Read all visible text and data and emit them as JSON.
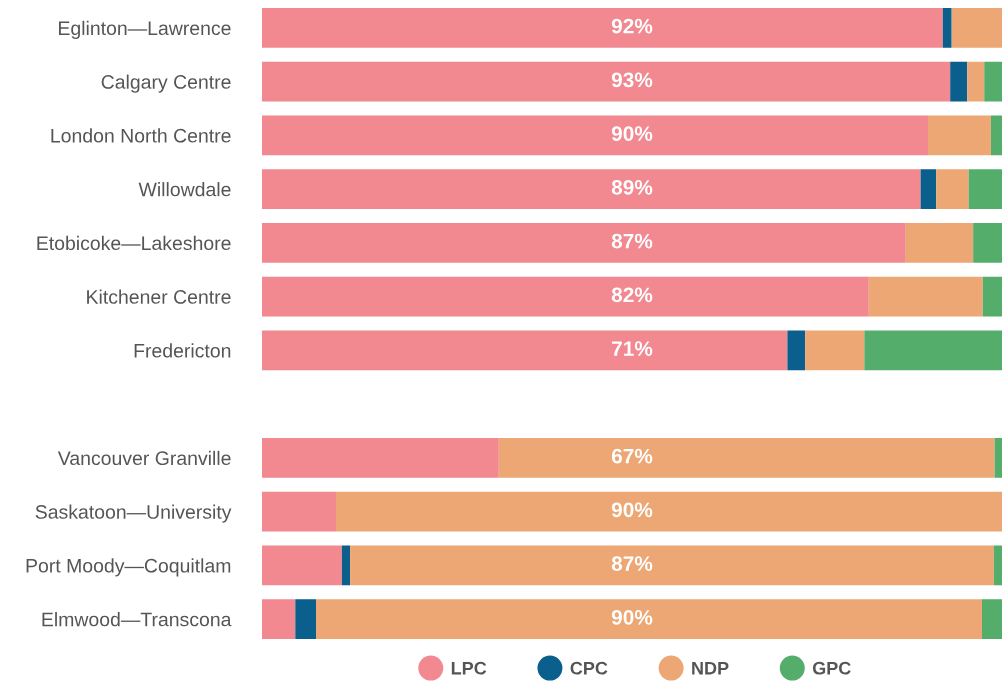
{
  "chart_data": {
    "type": "bar",
    "orientation": "horizontal",
    "stacked": true,
    "legend": "bottom",
    "marker": "circle",
    "xlim": [
      0,
      100
    ],
    "tick_labels": "y",
    "categories": [
      "Eglinton—Lawrence",
      "Calgary Centre",
      "London North Centre",
      "Willowdale",
      "Etobicoke—Lakeshore",
      "Kitchener Centre",
      "Fredericton",
      null,
      "Vancouver Granville",
      "Saskatoon—University",
      "Port Moody—Coquitlam",
      "Elmwood—Transcona"
    ],
    "series": [
      {
        "name": "LPC",
        "color": "#f28890",
        "values": [
          92,
          93,
          90,
          89,
          87,
          82,
          71,
          null,
          32,
          10,
          10.8,
          4.5
        ],
        "value_labels": [
          "92%",
          "93%",
          "90%",
          "89%",
          "87%",
          "82%",
          "71%",
          null,
          null,
          null,
          null,
          null
        ]
      },
      {
        "name": "CPC",
        "color": "#0a5f8c",
        "values": [
          1.2,
          2.3,
          0,
          2.1,
          0,
          0,
          2.4,
          null,
          0,
          0,
          1.1,
          2.8
        ],
        "value_labels": [
          null,
          null,
          null,
          null,
          null,
          null,
          null,
          null,
          null,
          null,
          null,
          null
        ]
      },
      {
        "name": "NDP",
        "color": "#eca774",
        "values": [
          6.8,
          2.3,
          8.5,
          4.4,
          9.1,
          15.4,
          8,
          null,
          67,
          90,
          87,
          90
        ],
        "value_labels": [
          null,
          null,
          null,
          null,
          null,
          null,
          null,
          null,
          "67%",
          "90%",
          "87%",
          "90%"
        ]
      },
      {
        "name": "GPC",
        "color": "#55ad6c",
        "values": [
          0,
          2.4,
          1.5,
          4.5,
          3.9,
          2.6,
          18.6,
          null,
          1,
          0,
          1.1,
          2.7
        ],
        "value_labels": [
          null,
          null,
          null,
          null,
          null,
          null,
          null,
          null,
          null,
          null,
          null,
          null
        ]
      }
    ]
  }
}
